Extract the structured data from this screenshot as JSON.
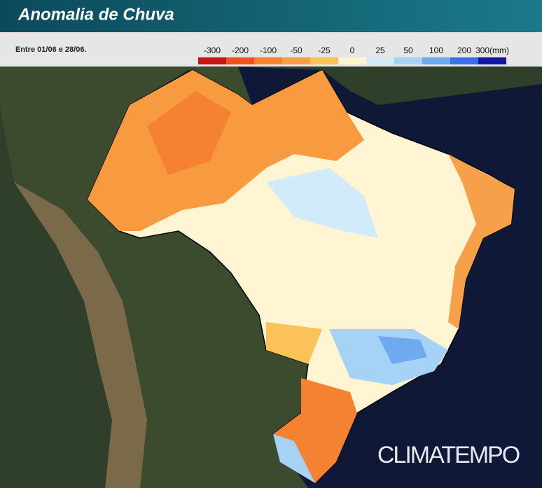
{
  "header": {
    "title": "Anomalia de Chuva",
    "subtitle": "Entre 01/06 e 28/06."
  },
  "legend": {
    "items": [
      {
        "label": "-300",
        "color": "#c81414"
      },
      {
        "label": "-200",
        "color": "#f0501e"
      },
      {
        "label": "-100",
        "color": "#f58232"
      },
      {
        "label": "-50",
        "color": "#f7a04a"
      },
      {
        "label": "-25",
        "color": "#fcc25a"
      },
      {
        "label": "0",
        "color": "#fff5d2"
      },
      {
        "label": "25",
        "color": "#d2ebfa"
      },
      {
        "label": "50",
        "color": "#a5d2f5"
      },
      {
        "label": "100",
        "color": "#6eaaf0"
      },
      {
        "label": "200",
        "color": "#3c6ee6"
      },
      {
        "label": "300(mm)",
        "color": "#1414a0"
      }
    ]
  },
  "brand": "CLIMATEMPO"
}
